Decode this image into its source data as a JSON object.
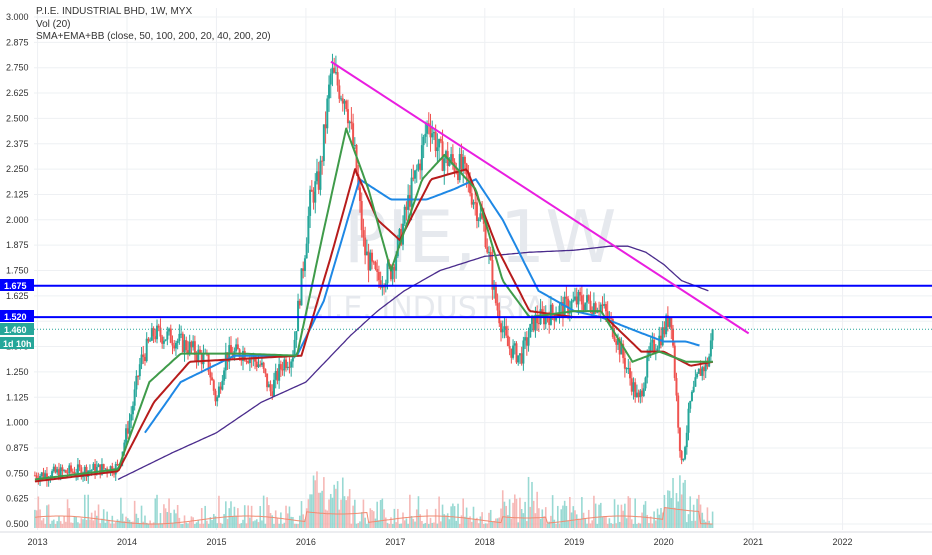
{
  "header": {
    "title": "P.I.E. INDUSTRIAL BHD, 1W, MYX",
    "volume_label": "Vol (20)",
    "indicator_label": "SMA+EMA+BB (close, 50, 100, 200, 20, 40, 200, 20)"
  },
  "watermark": {
    "symbol": "PIE, 1W",
    "name": "P.I.E. INDUSTRIAL"
  },
  "colors": {
    "up_candle": "#26a69a",
    "down_candle": "#ef5350",
    "ma_green": "#3f9b4a",
    "ma_red": "#b71c1c",
    "ma_blue": "#1e88e5",
    "ma_purple": "#4a2b8c",
    "trendline": "#e91ee0",
    "level_line": "#0000ff",
    "price_line": "#26a69a"
  },
  "price_labels": {
    "level_high": "1.675",
    "level_low": "1.520",
    "last_price": "1.460",
    "countdown": "1d 10h"
  },
  "chart_data": {
    "type": "candlestick",
    "title": "P.I.E. INDUSTRIAL BHD, 1W, MYX",
    "x_ticks": [
      "2013",
      "2014",
      "2015",
      "2016",
      "2017",
      "2018",
      "2019",
      "2020",
      "2021",
      "2022"
    ],
    "x_tick_years": [
      2013,
      2014,
      2015,
      2016,
      2017,
      2018,
      2019,
      2020,
      2021,
      2022
    ],
    "xlim": [
      2012.96,
      2023.0
    ],
    "y_ticks": [
      "3.000",
      "2.875",
      "2.750",
      "2.625",
      "2.500",
      "2.375",
      "2.250",
      "2.125",
      "2.000",
      "1.875",
      "1.750",
      "1.625",
      "1.375",
      "1.250",
      "1.125",
      "1.000",
      "0.875",
      "0.750",
      "0.625",
      "0.500"
    ],
    "ylim": [
      0.49,
      3.02
    ],
    "price_anchors": [
      [
        2012.97,
        0.74
      ],
      [
        2013.4,
        0.76
      ],
      [
        2013.9,
        0.78
      ],
      [
        2014.05,
        1.05
      ],
      [
        2014.15,
        1.3
      ],
      [
        2014.3,
        1.44
      ],
      [
        2014.5,
        1.42
      ],
      [
        2014.7,
        1.37
      ],
      [
        2014.9,
        1.3
      ],
      [
        2015.0,
        1.1
      ],
      [
        2015.1,
        1.33
      ],
      [
        2015.3,
        1.35
      ],
      [
        2015.5,
        1.28
      ],
      [
        2015.6,
        1.15
      ],
      [
        2015.75,
        1.3
      ],
      [
        2015.85,
        1.33
      ],
      [
        2015.95,
        1.7
      ],
      [
        2016.05,
        2.1
      ],
      [
        2016.15,
        2.2
      ],
      [
        2016.28,
        2.72
      ],
      [
        2016.45,
        2.6
      ],
      [
        2016.55,
        2.3
      ],
      [
        2016.65,
        1.85
      ],
      [
        2016.8,
        1.7
      ],
      [
        2016.95,
        1.75
      ],
      [
        2017.05,
        1.9
      ],
      [
        2017.15,
        2.1
      ],
      [
        2017.28,
        2.3
      ],
      [
        2017.37,
        2.5
      ],
      [
        2017.5,
        2.32
      ],
      [
        2017.75,
        2.25
      ],
      [
        2017.88,
        2.1
      ],
      [
        2018.0,
        1.95
      ],
      [
        2018.12,
        1.6
      ],
      [
        2018.25,
        1.38
      ],
      [
        2018.4,
        1.32
      ],
      [
        2018.55,
        1.5
      ],
      [
        2018.8,
        1.55
      ],
      [
        2019.05,
        1.6
      ],
      [
        2019.3,
        1.58
      ],
      [
        2019.45,
        1.45
      ],
      [
        2019.6,
        1.25
      ],
      [
        2019.72,
        1.1
      ],
      [
        2019.85,
        1.35
      ],
      [
        2020.0,
        1.45
      ],
      [
        2020.08,
        1.55
      ],
      [
        2020.13,
        1.2
      ],
      [
        2020.2,
        0.78
      ],
      [
        2020.3,
        1.1
      ],
      [
        2020.4,
        1.25
      ],
      [
        2020.5,
        1.3
      ],
      [
        2020.55,
        1.46
      ]
    ],
    "sma50_anchors": [
      [
        2012.97,
        0.72
      ],
      [
        2013.9,
        0.77
      ],
      [
        2014.25,
        1.2
      ],
      [
        2014.6,
        1.34
      ],
      [
        2015.3,
        1.34
      ],
      [
        2015.9,
        1.33
      ],
      [
        2016.2,
        1.95
      ],
      [
        2016.45,
        2.45
      ],
      [
        2016.7,
        2.15
      ],
      [
        2016.95,
        1.75
      ],
      [
        2017.3,
        2.2
      ],
      [
        2017.55,
        2.32
      ],
      [
        2017.9,
        2.15
      ],
      [
        2018.2,
        1.7
      ],
      [
        2018.5,
        1.52
      ],
      [
        2019.0,
        1.55
      ],
      [
        2019.3,
        1.55
      ],
      [
        2019.65,
        1.3
      ],
      [
        2019.95,
        1.35
      ],
      [
        2020.25,
        1.3
      ],
      [
        2020.55,
        1.3
      ]
    ],
    "ema50_anchors": [
      [
        2012.97,
        0.71
      ],
      [
        2013.9,
        0.76
      ],
      [
        2014.3,
        1.1
      ],
      [
        2014.7,
        1.3
      ],
      [
        2015.5,
        1.32
      ],
      [
        2015.95,
        1.33
      ],
      [
        2016.3,
        1.85
      ],
      [
        2016.55,
        2.25
      ],
      [
        2016.8,
        2.0
      ],
      [
        2017.05,
        1.9
      ],
      [
        2017.4,
        2.2
      ],
      [
        2017.8,
        2.25
      ],
      [
        2018.15,
        1.85
      ],
      [
        2018.5,
        1.55
      ],
      [
        2019.0,
        1.52
      ],
      [
        2019.35,
        1.52
      ],
      [
        2019.75,
        1.35
      ],
      [
        2020.0,
        1.35
      ],
      [
        2020.3,
        1.28
      ],
      [
        2020.55,
        1.3
      ]
    ],
    "ma100_anchors": [
      [
        2014.2,
        0.95
      ],
      [
        2014.6,
        1.2
      ],
      [
        2015.2,
        1.33
      ],
      [
        2015.9,
        1.33
      ],
      [
        2016.2,
        1.6
      ],
      [
        2016.6,
        2.2
      ],
      [
        2016.95,
        2.1
      ],
      [
        2017.35,
        2.1
      ],
      [
        2017.65,
        2.15
      ],
      [
        2017.9,
        2.2
      ],
      [
        2018.2,
        2.0
      ],
      [
        2018.6,
        1.65
      ],
      [
        2019.0,
        1.55
      ],
      [
        2019.3,
        1.52
      ],
      [
        2019.7,
        1.45
      ],
      [
        2020.0,
        1.4
      ],
      [
        2020.25,
        1.4
      ],
      [
        2020.4,
        1.38
      ]
    ],
    "sma200_anchors": [
      [
        2013.9,
        0.72
      ],
      [
        2014.5,
        0.85
      ],
      [
        2015.0,
        0.95
      ],
      [
        2015.5,
        1.1
      ],
      [
        2016.0,
        1.2
      ],
      [
        2016.5,
        1.43
      ],
      [
        2016.8,
        1.55
      ],
      [
        2017.1,
        1.65
      ],
      [
        2017.5,
        1.75
      ],
      [
        2018.0,
        1.82
      ],
      [
        2018.5,
        1.84
      ],
      [
        2019.0,
        1.85
      ],
      [
        2019.4,
        1.87
      ],
      [
        2019.6,
        1.87
      ],
      [
        2019.8,
        1.84
      ],
      [
        2020.0,
        1.78
      ],
      [
        2020.2,
        1.7
      ],
      [
        2020.5,
        1.65
      ]
    ],
    "trendline": [
      [
        2016.28,
        2.78
      ],
      [
        2020.95,
        1.44
      ]
    ],
    "horizontal_levels": [
      1.675,
      1.52
    ],
    "last_price": 1.46,
    "series": [
      {
        "name": "Vol (20)"
      },
      {
        "name": "SMA+EMA+BB (close, 50, 100, 200, 20, 40, 200, 20)"
      }
    ],
    "grid": true
  }
}
